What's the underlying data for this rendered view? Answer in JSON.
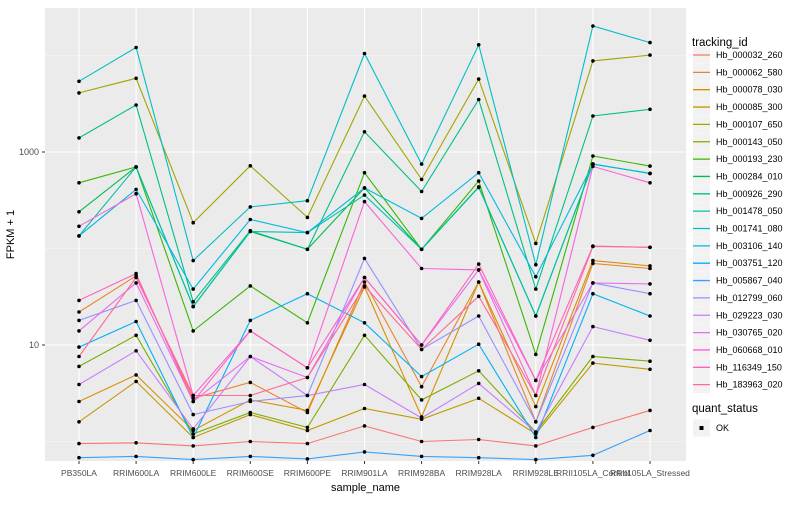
{
  "figure": {
    "y_axis": {
      "title": "FPKM + 1",
      "ticks": [
        "1000",
        "10"
      ],
      "tick_values": [
        1000,
        10
      ]
    },
    "x_axis": {
      "title": "sample_name"
    },
    "legend": {
      "tracking_title": "tracking_id",
      "quant_title": "quant_status",
      "quant_ok_label": "OK"
    },
    "colors": {
      "panel_bg": "#EBEBEB",
      "grid_major": "#FFFFFF",
      "grid_minor": "#F5F5F5",
      "axis_text": "#4D4D4D",
      "title_text": "#000000",
      "point": "#000000",
      "legend_key_bg": "#F2F2F2"
    }
  },
  "chart_data": {
    "type": "line",
    "title": "",
    "xlabel": "sample_name",
    "ylabel": "FPKM + 1",
    "y_scale": "log10",
    "ylim": [
      0.6,
      30000
    ],
    "y_major_breaks": [
      10,
      1000
    ],
    "y_minor_breaks": [
      1,
      100,
      10000
    ],
    "grid": true,
    "legend_position": "right",
    "point_status": "OK",
    "point_color": "#000000",
    "categories": [
      "PB350LA",
      "RRIM600LA",
      "RRIM600LE",
      "RRIM600SE",
      "RRIM600PE",
      "RRIM901LA",
      "RRIM928BA",
      "RRIM928LA",
      "RRIM928LE",
      "RRII105LA_Control",
      "RRII105LA_Stressed"
    ],
    "series": [
      {
        "name": "Hb_000032_260",
        "color": "#F8766D",
        "values": [
          0.95,
          0.97,
          0.9,
          1.0,
          0.95,
          1.45,
          1.0,
          1.05,
          0.9,
          1.4,
          2.1
        ]
      },
      {
        "name": "Hb_000062_580",
        "color": "#EA8331",
        "values": [
          22,
          52,
          2.8,
          4.1,
          2.0,
          45,
          3.7,
          45,
          1.6,
          70,
          62
        ]
      },
      {
        "name": "Hb_000078_030",
        "color": "#D89000",
        "values": [
          2.6,
          4.9,
          1.3,
          2.7,
          2.1,
          40,
          1.8,
          45,
          2.3,
          75,
          66
        ]
      },
      {
        "name": "Hb_000085_300",
        "color": "#C09B00",
        "values": [
          1.6,
          4.2,
          1.1,
          1.9,
          1.3,
          2.2,
          1.7,
          2.8,
          1.2,
          6.5,
          5.6
        ]
      },
      {
        "name": "Hb_000107_650",
        "color": "#A3A500",
        "values": [
          4100,
          5800,
          185,
          720,
          210,
          3800,
          520,
          5700,
          113,
          8800,
          10100
        ]
      },
      {
        "name": "Hb_000143_050",
        "color": "#7CAE00",
        "values": [
          6.0,
          12.6,
          1.2,
          2.0,
          1.4,
          12.6,
          2.7,
          5.4,
          1.25,
          7.6,
          6.8
        ]
      },
      {
        "name": "Hb_000193_230",
        "color": "#39B600",
        "values": [
          480,
          700,
          14,
          41,
          17,
          610,
          98,
          500,
          8,
          910,
          715
        ]
      },
      {
        "name": "Hb_000284_010",
        "color": "#00BB4E",
        "values": [
          240,
          700,
          25,
          150,
          98,
          425,
          98,
          435,
          20,
          750,
          600
        ]
      },
      {
        "name": "Hb_000926_290",
        "color": "#00C087",
        "values": [
          1400,
          3070,
          28,
          153,
          98,
          1620,
          390,
          3500,
          38,
          2360,
          2770
        ]
      },
      {
        "name": "Hb_001478_050",
        "color": "#00C1AB",
        "values": [
          135,
          700,
          25,
          150,
          146,
          358,
          98,
          430,
          20,
          750,
          600
        ]
      },
      {
        "name": "Hb_001741_080",
        "color": "#00BFC4",
        "values": [
          5400,
          12100,
          75,
          270,
          313,
          10500,
          750,
          12900,
          68,
          20200,
          13600
        ]
      },
      {
        "name": "Hb_003106_140",
        "color": "#00BAE0",
        "values": [
          135,
          410,
          38,
          200,
          146,
          425,
          205,
          610,
          51,
          750,
          600
        ]
      },
      {
        "name": "Hb_003751_120",
        "color": "#00B0F6",
        "values": [
          9.5,
          17.5,
          1.1,
          18,
          34,
          17,
          4.7,
          10.2,
          1.1,
          34,
          20
        ]
      },
      {
        "name": "Hb_005867_040",
        "color": "#35A2FF",
        "values": [
          0.68,
          0.7,
          0.65,
          0.7,
          0.66,
          0.78,
          0.7,
          0.68,
          0.65,
          0.72,
          1.3
        ]
      },
      {
        "name": "Hb_012799_060",
        "color": "#9590FF",
        "values": [
          18,
          29,
          1.9,
          2.6,
          3.0,
          79,
          9,
          20,
          1.6,
          44,
          34
        ]
      },
      {
        "name": "Hb_029223_030",
        "color": "#C77CFF",
        "values": [
          3.9,
          8.7,
          1.35,
          7.6,
          3.0,
          3.9,
          1.75,
          4.0,
          1.25,
          15.5,
          11.2
        ]
      },
      {
        "name": "Hb_030765_020",
        "color": "#E76BF3",
        "values": [
          14,
          44,
          2.6,
          7.6,
          4.6,
          50,
          10,
          60,
          4.3,
          44,
          43
        ]
      },
      {
        "name": "Hb_060668_010",
        "color": "#FA62DB",
        "values": [
          170,
          370,
          3.0,
          14,
          5.8,
          306,
          62,
          60,
          3.0,
          710,
          480
        ]
      },
      {
        "name": "Hb_116349_150",
        "color": "#FF62BC",
        "values": [
          29,
          55,
          2.6,
          14,
          5.8,
          50,
          10,
          69,
          4.3,
          106,
          103
        ]
      },
      {
        "name": "Hb_183963_020",
        "color": "#FF6A98",
        "values": [
          7.6,
          50,
          3.0,
          3.0,
          4.6,
          41,
          9,
          32,
          3.0,
          105,
          103
        ]
      }
    ]
  }
}
